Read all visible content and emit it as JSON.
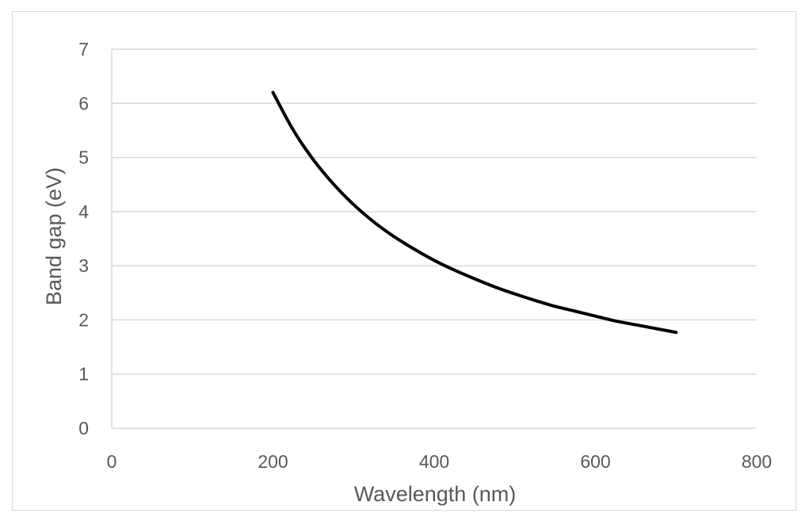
{
  "chart_data": {
    "type": "line",
    "title": "",
    "xlabel": "Wavelength (nm)",
    "ylabel": "Band gap (eV)",
    "xlim": [
      0,
      800
    ],
    "ylim": [
      0,
      7
    ],
    "x_ticks": [
      0,
      200,
      400,
      600,
      800
    ],
    "y_ticks": [
      0,
      1,
      2,
      3,
      4,
      5,
      6,
      7
    ],
    "x_tick_labels": [
      "0",
      "200",
      "400",
      "600",
      "800"
    ],
    "y_tick_labels": [
      "0",
      "1",
      "2",
      "3",
      "4",
      "5",
      "6",
      "7"
    ],
    "grid": "horizontal",
    "legend": "none",
    "series": [
      {
        "name": "Band gap",
        "color": "#000000",
        "x": [
          200,
          225,
          250,
          275,
          300,
          325,
          350,
          375,
          400,
          425,
          450,
          475,
          500,
          525,
          550,
          575,
          600,
          625,
          650,
          675,
          700
        ],
        "y": [
          6.2,
          5.51,
          4.96,
          4.51,
          4.13,
          3.81,
          3.54,
          3.31,
          3.1,
          2.92,
          2.76,
          2.61,
          2.48,
          2.36,
          2.25,
          2.16,
          2.07,
          1.98,
          1.91,
          1.84,
          1.77
        ]
      }
    ]
  },
  "colors": {
    "background": "#ffffff",
    "frame": "#d9d9d9",
    "gridline": "#d9d9d9",
    "text": "#595959",
    "series": "#000000"
  }
}
